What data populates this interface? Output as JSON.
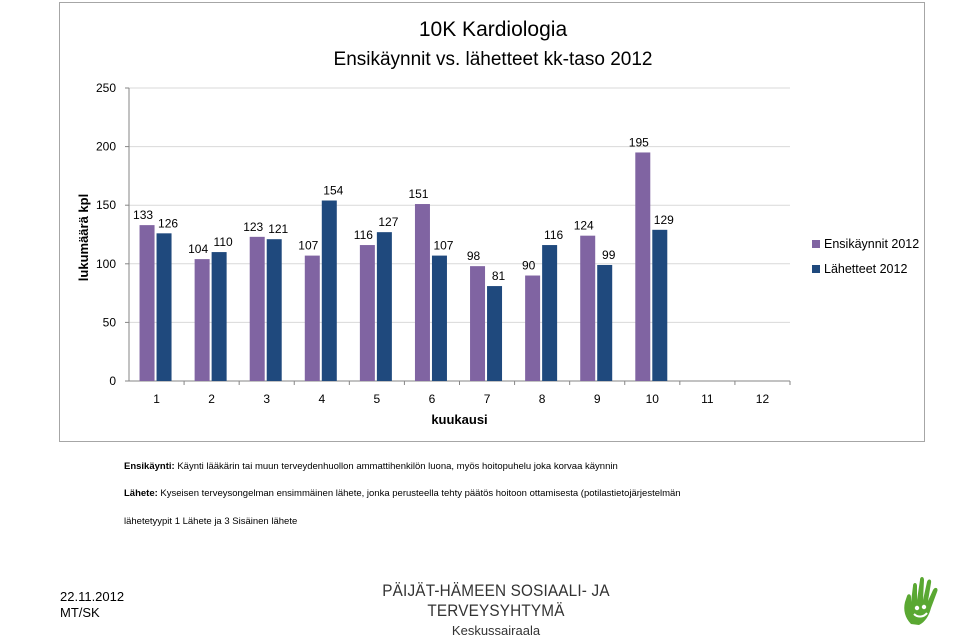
{
  "chart_data": {
    "type": "bar",
    "title_line1": "10K Kardiologia",
    "title_line2": "Ensikäynnit vs. lähetteet kk-taso 2012",
    "xlabel": "kuukausi",
    "ylabel": "lukumäärä kpl",
    "categories": [
      "1",
      "2",
      "3",
      "4",
      "5",
      "6",
      "7",
      "8",
      "9",
      "10",
      "11",
      "12"
    ],
    "ylim": [
      0,
      250
    ],
    "yticks": [
      0,
      50,
      100,
      150,
      200,
      250
    ],
    "grid": true,
    "legend_position": "right",
    "series": [
      {
        "name": "Ensikäynnit 2012",
        "color": "#8064a2",
        "values": [
          133,
          104,
          123,
          107,
          116,
          151,
          98,
          90,
          124,
          195,
          null,
          null
        ]
      },
      {
        "name": "Lähetteet 2012",
        "color": "#1f497d",
        "values": [
          126,
          110,
          121,
          154,
          127,
          107,
          81,
          116,
          99,
          129,
          null,
          null
        ]
      }
    ]
  },
  "definitions": {
    "ensikaynti_term": "Ensikäynti:",
    "ensikaynti_text": " Käynti lääkärin tai muun terveydenhuollon ammattihenkilön luona, myös hoitopuhelu joka korvaa käynnin",
    "lahete_term": "Lähete:",
    "lahete_text": " Kyseisen terveysongelman ensimmäinen lähete, jonka perusteella tehty päätös hoitoon ottamisesta (potilastietojärjestelmän",
    "lahetetyypit": "lähetetyypit 1 Lähete ja 3 Sisäinen lähete"
  },
  "footer": {
    "date": "22.11.2012",
    "initials": "MT/SK",
    "org_name": "PÄIJÄT-HÄMEEN SOSIAALI- JA TERVEYSYHTYMÄ",
    "org_sub": "Keskussairaala"
  },
  "logo": {
    "icon": "hand-logo-icon",
    "color": "#5aa832"
  }
}
